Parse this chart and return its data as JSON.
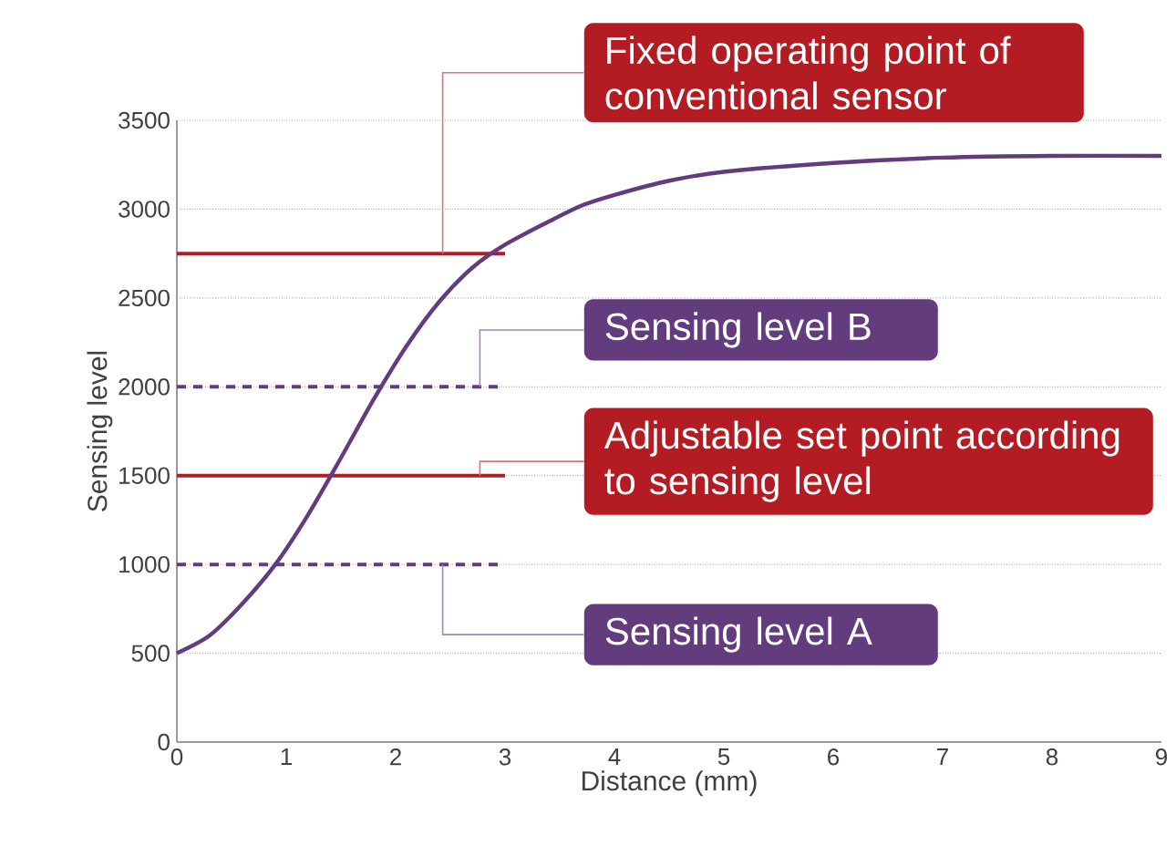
{
  "chart_data": {
    "type": "line",
    "xlabel": "Distance (mm)",
    "ylabel": "Sensing level",
    "xlim": [
      0,
      9
    ],
    "ylim": [
      0,
      3500
    ],
    "xticks": [
      0,
      1,
      2,
      3,
      4,
      5,
      6,
      7,
      8,
      9
    ],
    "yticks": [
      0,
      500,
      1000,
      1500,
      2000,
      2500,
      3000,
      3500
    ],
    "grid": "y",
    "series": [
      {
        "color": "#633c7e",
        "x": [
          0,
          0.3,
          0.6,
          0.9,
          1.2,
          1.5,
          1.8,
          2.1,
          2.4,
          2.7,
          3.0,
          3.4,
          3.7,
          4,
          4.5,
          5,
          6,
          7,
          8,
          9
        ],
        "values": [
          500,
          600,
          780,
          1000,
          1280,
          1600,
          1930,
          2230,
          2480,
          2670,
          2800,
          2930,
          3020,
          3080,
          3160,
          3210,
          3260,
          3290,
          3300,
          3300
        ]
      }
    ],
    "ref_lines": [
      {
        "axis": "y",
        "value": 2750,
        "label": "Fixed operating point of conventional sensor",
        "color": "#b41c24",
        "line_style": "solid"
      },
      {
        "axis": "y",
        "value": 2000,
        "label": "Sensing level B",
        "color": "#633c7e",
        "line_style": "dashed"
      },
      {
        "axis": "y",
        "value": 1500,
        "label": "Adjustable set point according to sensing level",
        "color": "#b41c24",
        "line_style": "solid"
      },
      {
        "axis": "y",
        "value": 1000,
        "label": "Sensing level A",
        "color": "#633c7e",
        "line_style": "dashed"
      }
    ]
  }
}
